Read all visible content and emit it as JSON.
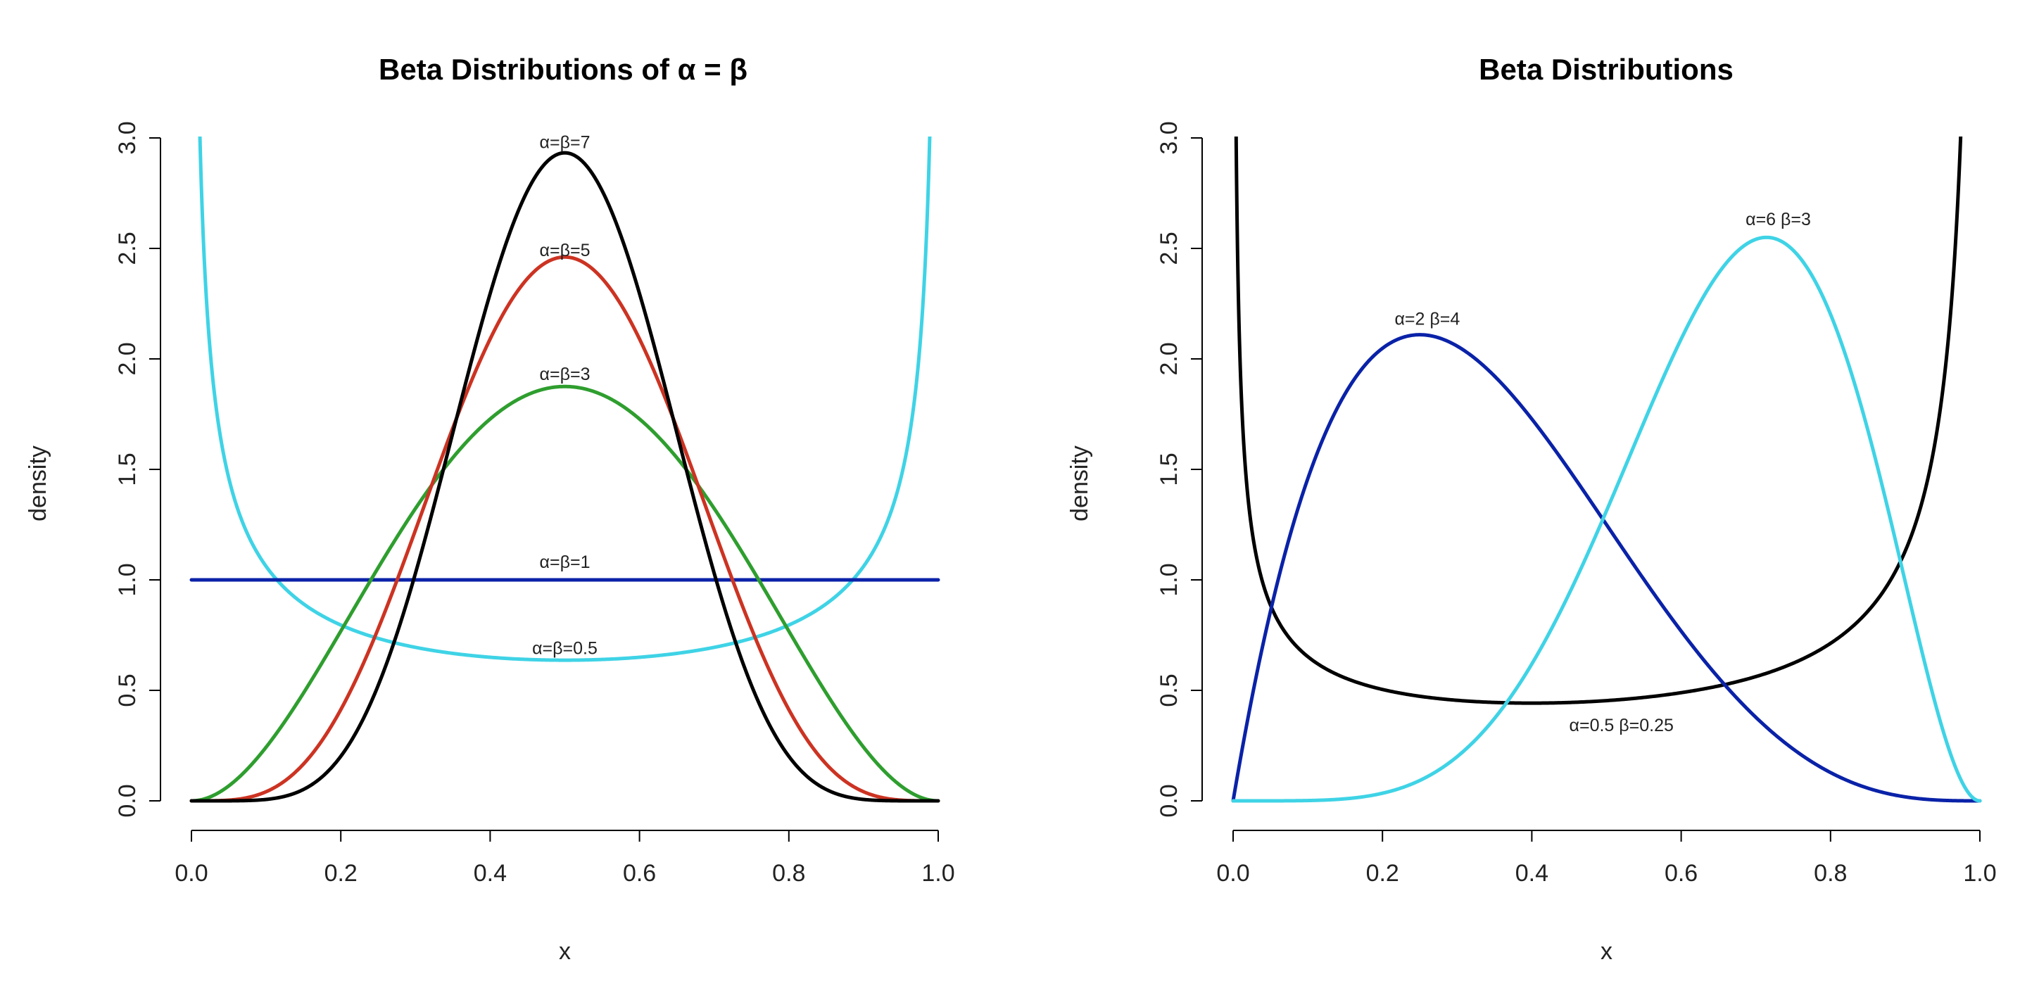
{
  "chart_data": [
    {
      "type": "line",
      "title": "Beta Distributions of α = β",
      "xlabel": "x",
      "ylabel": "density",
      "xlim": [
        0,
        1
      ],
      "ylim": [
        0,
        3
      ],
      "x_ticks": [
        "0.0",
        "0.2",
        "0.4",
        "0.6",
        "0.8",
        "1.0"
      ],
      "y_ticks": [
        "0.0",
        "0.5",
        "1.0",
        "1.5",
        "2.0",
        "2.5",
        "3.0"
      ],
      "grid": false,
      "series": [
        {
          "name": "α=β=0.5",
          "alpha": 0.5,
          "beta": 0.5,
          "color": "#3fd3e6",
          "label_at": {
            "x": 0.5,
            "y": 0.69
          }
        },
        {
          "name": "α=β=1",
          "alpha": 1,
          "beta": 1,
          "color": "#0a22a8",
          "label_at": {
            "x": 0.5,
            "y": 1.08
          }
        },
        {
          "name": "α=β=3",
          "alpha": 3,
          "beta": 3,
          "color": "#2e9e2e",
          "label_at": {
            "x": 0.5,
            "y": 1.93
          }
        },
        {
          "name": "α=β=5",
          "alpha": 5,
          "beta": 5,
          "color": "#cc3322",
          "label_at": {
            "x": 0.5,
            "y": 2.49
          }
        },
        {
          "name": "α=β=7",
          "alpha": 7,
          "beta": 7,
          "color": "#000000",
          "label_at": {
            "x": 0.5,
            "y": 2.98
          }
        }
      ]
    },
    {
      "type": "line",
      "title": "Beta Distributions",
      "xlabel": "x",
      "ylabel": "density",
      "xlim": [
        0,
        1
      ],
      "ylim": [
        0,
        3
      ],
      "x_ticks": [
        "0.0",
        "0.2",
        "0.4",
        "0.6",
        "0.8",
        "1.0"
      ],
      "y_ticks": [
        "0.0",
        "0.5",
        "1.0",
        "1.5",
        "2.0",
        "2.5",
        "3.0"
      ],
      "grid": false,
      "series": [
        {
          "name": "α=0.5 β=0.25",
          "alpha": 0.5,
          "beta": 0.25,
          "color": "#000000",
          "label_at": {
            "x": 0.52,
            "y": 0.34
          }
        },
        {
          "name": "α=2 β=4",
          "alpha": 2,
          "beta": 4,
          "color": "#0a22a8",
          "label_at": {
            "x": 0.26,
            "y": 2.18
          }
        },
        {
          "name": "α=6 β=3",
          "alpha": 6,
          "beta": 3,
          "color": "#3fd3e6",
          "label_at": {
            "x": 0.73,
            "y": 2.63
          }
        }
      ]
    }
  ]
}
